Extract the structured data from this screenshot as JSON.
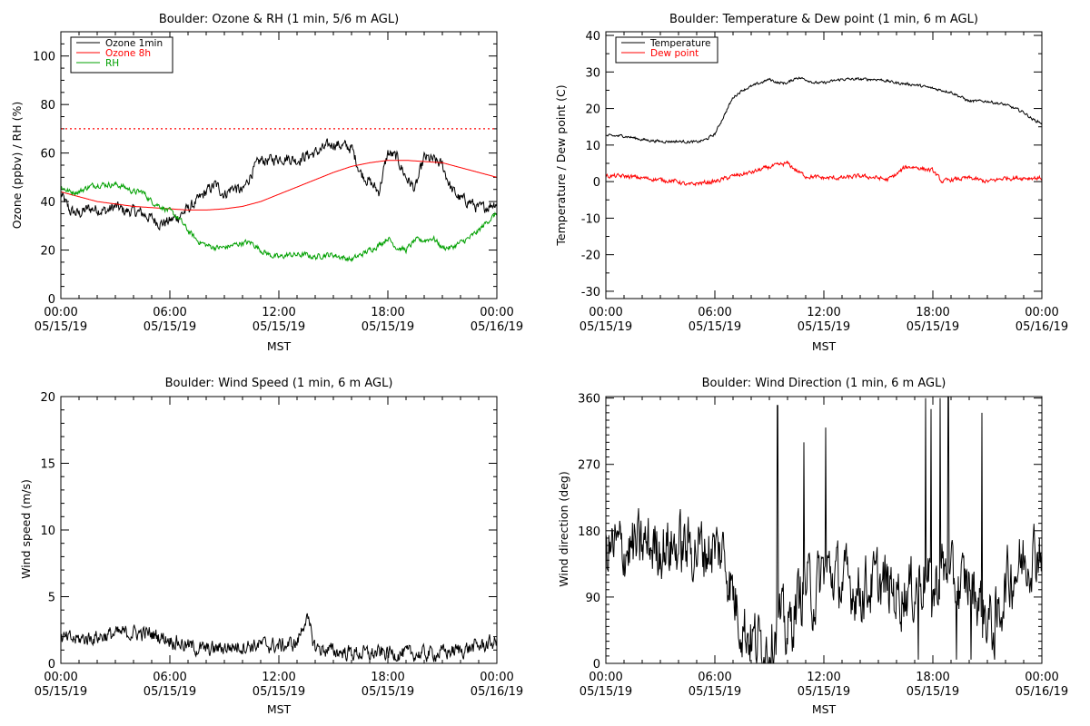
{
  "chart_data": [
    {
      "type": "line",
      "title": "Boulder: Ozone & RH (1 min, 5/6 m AGL)",
      "ylabel": "Ozone (ppbv) / RH (%)",
      "xlabel": "MST",
      "xlim": [
        0,
        24
      ],
      "ylim": [
        0,
        110
      ],
      "yticks": [
        0,
        20,
        40,
        60,
        80,
        100
      ],
      "xticks": [
        0,
        6,
        12,
        18,
        24
      ],
      "xtick_labels": [
        [
          "00:00",
          "05/15/19"
        ],
        [
          "06:00",
          "05/15/19"
        ],
        [
          "12:00",
          "05/15/19"
        ],
        [
          "18:00",
          "05/15/19"
        ],
        [
          "00:00",
          "05/16/19"
        ]
      ],
      "xminor_step": 1,
      "yminor_step": 5,
      "legend": "top-left",
      "reference_line": {
        "y": 70,
        "color": "#ff0000",
        "style": "dotted"
      },
      "series": [
        {
          "name": "Ozone 1min",
          "color": "#000000",
          "noise": 2.5,
          "x": [
            0,
            0.5,
            1,
            1.5,
            2,
            2.5,
            3,
            3.5,
            4,
            4.5,
            5,
            5.5,
            6,
            6.5,
            7,
            7.5,
            8,
            8.5,
            9,
            9.5,
            10,
            10.5,
            11,
            11.5,
            12,
            12.5,
            13,
            13.5,
            14,
            14.5,
            15,
            15.5,
            16,
            16.5,
            17,
            17.5,
            18,
            18.5,
            19,
            19.5,
            20,
            20.5,
            21,
            21.5,
            22,
            22.5,
            23,
            23.5,
            24
          ],
          "values": [
            43,
            36,
            35,
            37,
            37,
            36,
            38,
            36,
            36,
            35,
            33,
            31,
            32,
            34,
            37,
            40,
            44,
            47,
            43,
            46,
            44,
            52,
            57,
            57,
            58,
            58,
            57,
            59,
            60,
            62,
            64,
            63,
            62,
            52,
            48,
            44,
            60,
            58,
            50,
            45,
            58,
            57,
            55,
            45,
            41,
            40,
            37,
            38,
            40
          ]
        },
        {
          "name": "Ozone 8h",
          "color": "#ff0000",
          "noise": 0,
          "x": [
            0,
            1,
            2,
            3,
            4,
            5,
            6,
            7,
            8,
            9,
            10,
            11,
            12,
            13,
            14,
            15,
            16,
            17,
            18,
            19,
            20,
            21,
            22,
            23,
            24
          ],
          "values": [
            44,
            42,
            40,
            39,
            38,
            37.5,
            37,
            36.5,
            36.5,
            37,
            38,
            40,
            43,
            46,
            49,
            52,
            54.5,
            56,
            57,
            57,
            56.5,
            56,
            54,
            52,
            50
          ]
        },
        {
          "name": "RH",
          "color": "#00a000",
          "noise": 1.2,
          "x": [
            0,
            0.5,
            1,
            1.5,
            2,
            2.5,
            3,
            3.5,
            4,
            4.5,
            5,
            5.5,
            6,
            6.5,
            7,
            7.5,
            8,
            8.5,
            9,
            9.5,
            10,
            10.5,
            11,
            11.5,
            12,
            12.5,
            13,
            13.5,
            14,
            14.5,
            15,
            15.5,
            16,
            16.5,
            17,
            17.5,
            18,
            18.5,
            19,
            19.5,
            20,
            20.5,
            21,
            21.5,
            22,
            22.5,
            23,
            23.5,
            24
          ],
          "values": [
            46,
            44,
            44,
            46,
            47,
            47,
            47,
            46,
            44,
            44,
            40,
            38,
            36,
            33,
            28,
            24,
            22,
            21,
            21,
            22,
            23,
            23,
            20,
            18,
            17,
            18,
            18,
            18,
            17,
            18,
            18,
            17,
            16,
            18,
            20,
            22,
            25,
            21,
            20,
            24,
            24,
            25,
            21,
            21,
            23,
            25,
            28,
            32,
            35
          ]
        }
      ]
    },
    {
      "type": "line",
      "title": "Boulder: Temperature & Dew point (1 min, 6 m AGL)",
      "ylabel": "Temperature / Dew point (C)",
      "xlabel": "MST",
      "xlim": [
        0,
        24
      ],
      "ylim": [
        -32,
        41
      ],
      "yticks": [
        -30,
        -20,
        -10,
        0,
        10,
        20,
        30,
        40
      ],
      "xticks": [
        0,
        6,
        12,
        18,
        24
      ],
      "xtick_labels": [
        [
          "00:00",
          "05/15/19"
        ],
        [
          "06:00",
          "05/15/19"
        ],
        [
          "12:00",
          "05/15/19"
        ],
        [
          "18:00",
          "05/15/19"
        ],
        [
          "00:00",
          "05/16/19"
        ]
      ],
      "xminor_step": 1,
      "yminor_step": 5,
      "legend": "top-left",
      "series": [
        {
          "name": "Temperature",
          "color": "#000000",
          "noise": 0.4,
          "x": [
            0,
            1,
            2,
            3,
            4,
            5,
            5.5,
            6,
            6.5,
            7,
            7.5,
            8,
            8.5,
            9,
            9.5,
            10,
            10.5,
            11,
            11.5,
            12,
            13,
            14,
            15,
            16,
            17,
            18,
            19,
            20,
            21,
            22,
            23,
            23.5,
            24
          ],
          "values": [
            12.5,
            12.5,
            11.5,
            11,
            11,
            10.8,
            11.5,
            13,
            18,
            23,
            25,
            26,
            27,
            28,
            27,
            27,
            28.5,
            28,
            27,
            27,
            28,
            28,
            28,
            27,
            26.5,
            25.5,
            24.5,
            22,
            22,
            21,
            19,
            17,
            16
          ]
        },
        {
          "name": "Dew point",
          "color": "#ff0000",
          "noise": 0.6,
          "x": [
            0,
            1,
            2,
            3,
            4,
            4.5,
            5,
            6,
            7,
            8,
            9,
            10,
            10.5,
            11,
            12,
            13,
            14,
            15,
            15.5,
            16,
            16.5,
            17,
            18,
            18.5,
            19,
            20,
            21,
            22,
            23,
            24
          ],
          "values": [
            1.5,
            1.5,
            1,
            0.5,
            0,
            -1,
            -0.5,
            0,
            1.5,
            2.5,
            4,
            5,
            3,
            1.5,
            1,
            1,
            1.5,
            1,
            0.5,
            2,
            4,
            4,
            3,
            0,
            0.5,
            1,
            0,
            1,
            1,
            1
          ]
        }
      ]
    },
    {
      "type": "line",
      "title": "Boulder: Wind Speed (1 min, 6 m AGL)",
      "ylabel": "Wind speed (m/s)",
      "xlabel": "MST",
      "xlim": [
        0,
        24
      ],
      "ylim": [
        0,
        20
      ],
      "yticks": [
        0,
        5,
        10,
        15,
        20
      ],
      "xticks": [
        0,
        6,
        12,
        18,
        24
      ],
      "xtick_labels": [
        [
          "00:00",
          "05/15/19"
        ],
        [
          "06:00",
          "05/15/19"
        ],
        [
          "12:00",
          "05/15/19"
        ],
        [
          "18:00",
          "05/15/19"
        ],
        [
          "00:00",
          "05/16/19"
        ]
      ],
      "xminor_step": 1,
      "yminor_step": 1,
      "legend": "none",
      "series": [
        {
          "name": "",
          "color": "#000000",
          "noise": 0.6,
          "x": [
            0,
            1,
            2,
            3,
            4,
            5,
            6,
            7,
            8,
            9,
            10,
            11,
            12,
            13,
            13.5,
            14,
            15,
            16,
            17,
            18,
            19,
            20,
            21,
            22,
            23,
            24
          ],
          "values": [
            1.8,
            1.8,
            2.0,
            2.2,
            2.3,
            2.2,
            1.8,
            1.3,
            1.0,
            1.2,
            1.3,
            1.4,
            1.3,
            1.5,
            3.5,
            1.2,
            0.9,
            0.8,
            0.7,
            0.8,
            0.7,
            0.7,
            0.8,
            1.0,
            1.3,
            1.6
          ]
        }
      ]
    },
    {
      "type": "line",
      "title": "Boulder: Wind Direction (1 min, 6 m AGL)",
      "ylabel": "Wind direction (deg)",
      "xlabel": "MST",
      "xlim": [
        0,
        24
      ],
      "ylim": [
        0,
        362
      ],
      "yticks": [
        0,
        90,
        180,
        270,
        360
      ],
      "xticks": [
        0,
        6,
        12,
        18,
        24
      ],
      "xtick_labels": [
        [
          "00:00",
          "05/15/19"
        ],
        [
          "06:00",
          "05/15/19"
        ],
        [
          "12:00",
          "05/15/19"
        ],
        [
          "18:00",
          "05/15/19"
        ],
        [
          "00:00",
          "05/16/19"
        ]
      ],
      "xminor_step": 1,
      "yminor_step": 10,
      "legend": "none",
      "series": [
        {
          "name": "",
          "color": "#000000",
          "noise": 45,
          "x": [
            0,
            1,
            2,
            3,
            4,
            5,
            6,
            6.5,
            7,
            7.5,
            8,
            8.5,
            9,
            9.5,
            10,
            10.5,
            11,
            11.5,
            12,
            12.5,
            13,
            14,
            15,
            16,
            17,
            17.5,
            18,
            18.5,
            19,
            19.5,
            20,
            20.5,
            21,
            21.5,
            22,
            23,
            24
          ],
          "values": [
            155,
            155,
            158,
            160,
            158,
            156,
            155,
            150,
            95,
            55,
            35,
            25,
            30,
            60,
            40,
            80,
            110,
            90,
            130,
            120,
            110,
            100,
            110,
            95,
            100,
            120,
            90,
            130,
            110,
            100,
            115,
            85,
            60,
            50,
            110,
            140,
            160
          ],
          "spikes": [
            [
              9.45,
              350
            ],
            [
              10.9,
              300
            ],
            [
              12.1,
              320
            ],
            [
              17.6,
              360
            ],
            [
              17.9,
              345
            ],
            [
              18.4,
              360
            ],
            [
              18.85,
              362
            ],
            [
              20.7,
              340
            ],
            [
              17.2,
              5
            ],
            [
              19.3,
              5
            ],
            [
              20.1,
              5
            ],
            [
              21.4,
              5
            ]
          ]
        }
      ]
    }
  ]
}
